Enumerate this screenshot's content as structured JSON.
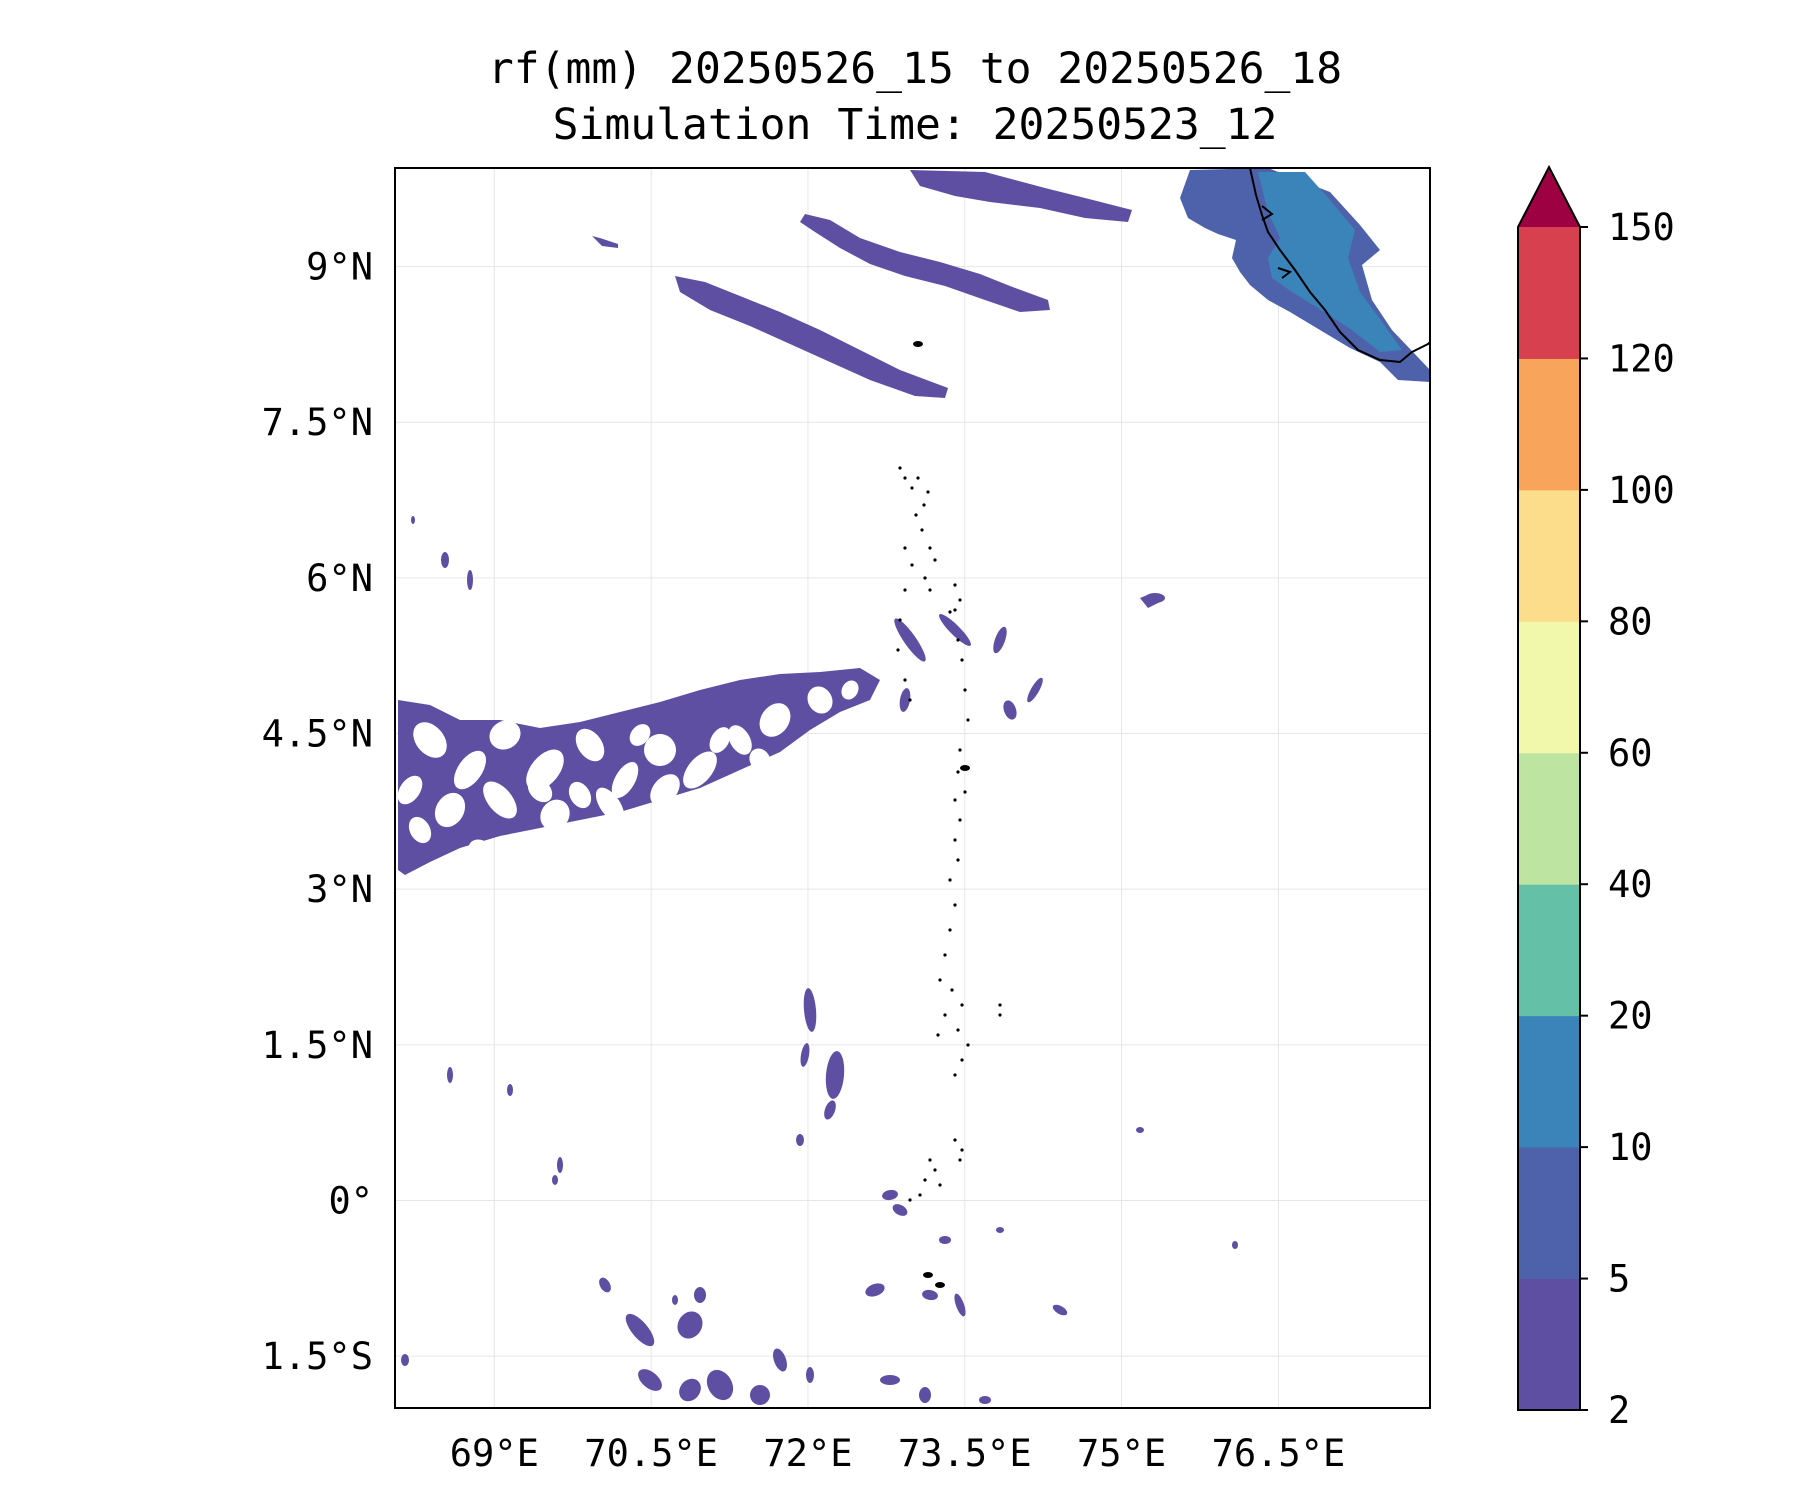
{
  "map": {
    "title_line1": "rf(mm) 20250526_15 to 20250526_18",
    "title_line2": "Simulation Time: 20250523_12",
    "lon_labels": [
      "69°E",
      "70.5°E",
      "72°E",
      "73.5°E",
      "75°E",
      "76.5°E"
    ],
    "lat_labels": [
      "9°N",
      "7.5°N",
      "6°N",
      "4.5°N",
      "3°N",
      "1.5°N",
      "0°",
      "1.5°S"
    ],
    "lon_values": [
      69,
      70.5,
      72,
      73.5,
      75,
      76.5
    ],
    "lat_values": [
      9,
      7.5,
      6,
      4.5,
      3,
      1.5,
      0,
      -1.5
    ],
    "extent": {
      "lon_min": 68.05,
      "lon_max": 77.95,
      "lat_min": -2.0,
      "lat_max": 9.95
    },
    "grid": true
  },
  "colorbar": {
    "levels": [
      "2",
      "5",
      "10",
      "20",
      "40",
      "60",
      "80",
      "100",
      "120",
      "150"
    ],
    "colors": [
      "#5e4fa2",
      "#4e62ab",
      "#3a84b9",
      "#64c0a7",
      "#bde4a0",
      "#f1f8ab",
      "#fcdd8c",
      "#f9a45b",
      "#d6404f"
    ],
    "extend_color": "#9e0142",
    "extend": "max"
  },
  "rain_color": "#5e4fa2",
  "rain_color_2": "#4e62ab",
  "rain_color_3": "#3a84b9"
}
